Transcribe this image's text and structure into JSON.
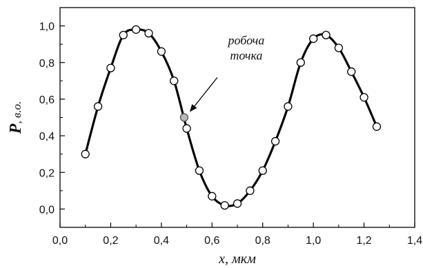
{
  "chart_data": {
    "type": "line",
    "xlabel": "x, мкм",
    "ylabel_main": "P",
    "ylabel_sub": ", в.о.",
    "xlim": [
      0.0,
      1.4
    ],
    "ylim": [
      -0.1,
      1.1
    ],
    "x_ticks": [
      0.0,
      0.2,
      0.4,
      0.6,
      0.8,
      1.0,
      1.2,
      1.4
    ],
    "x_tick_labels": [
      "0,0",
      "0,2",
      "0,4",
      "0,6",
      "0,8",
      "1,0",
      "1,2",
      "1,4"
    ],
    "y_ticks": [
      0.0,
      0.2,
      0.4,
      0.6,
      0.8,
      1.0
    ],
    "y_tick_labels": [
      "0,0",
      "0,2",
      "0,4",
      "0,6",
      "0,8",
      "1,0"
    ],
    "grid": false,
    "series": [
      {
        "x": [
          0.1,
          0.15,
          0.2,
          0.25,
          0.3,
          0.35,
          0.4,
          0.45,
          0.5,
          0.55,
          0.6,
          0.65,
          0.7,
          0.75,
          0.8,
          0.85,
          0.9,
          0.95,
          1.0,
          1.05,
          1.1,
          1.15,
          1.2,
          1.25
        ],
        "y": [
          0.3,
          0.56,
          0.77,
          0.95,
          0.98,
          0.96,
          0.86,
          0.7,
          0.44,
          0.21,
          0.07,
          0.02,
          0.03,
          0.1,
          0.21,
          0.37,
          0.56,
          0.8,
          0.93,
          0.95,
          0.88,
          0.75,
          0.61,
          0.45
        ],
        "color": "#000000",
        "marker_fill": "#ffffff"
      }
    ],
    "highlight_point": {
      "x": 0.49,
      "y": 0.5,
      "color": "#b8b8b8"
    },
    "annotation": {
      "lines": [
        "робоча",
        "точка"
      ]
    }
  }
}
